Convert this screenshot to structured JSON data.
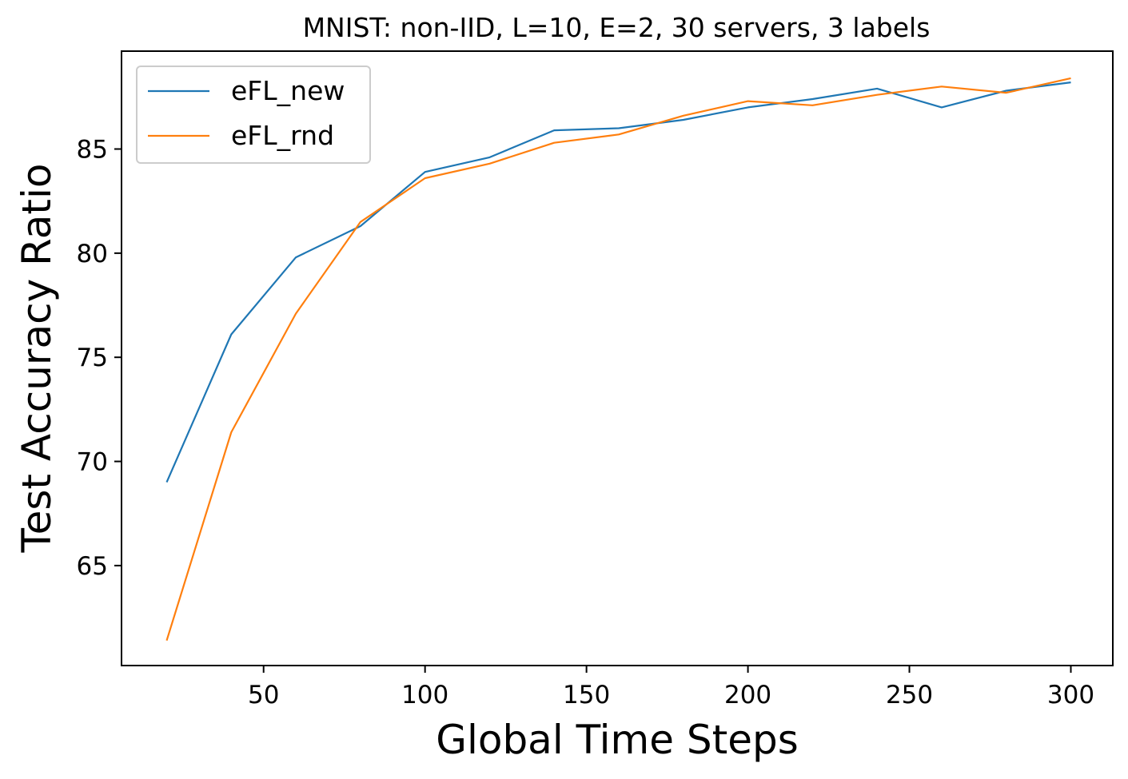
{
  "chart_data": {
    "type": "line",
    "title": "MNIST: non-IID, L=10, E=2, 30 servers, 3 labels",
    "xlabel": "Global Time Steps",
    "ylabel": "Test Accuracy Ratio",
    "x": [
      20,
      40,
      60,
      80,
      100,
      120,
      140,
      160,
      180,
      200,
      220,
      240,
      260,
      280,
      300
    ],
    "xlim": [
      6,
      313
    ],
    "ylim": [
      60.2,
      89.7
    ],
    "xticks": [
      50,
      100,
      150,
      200,
      250,
      300
    ],
    "yticks": [
      65,
      70,
      75,
      80,
      85
    ],
    "grid": false,
    "legend_position": "top-left",
    "series": [
      {
        "name": "eFL_new",
        "color": "#1f77b4",
        "values": [
          69.0,
          76.1,
          79.8,
          81.3,
          83.9,
          84.6,
          85.9,
          86.0,
          86.4,
          87.0,
          87.4,
          87.9,
          87.0,
          87.8,
          88.2
        ]
      },
      {
        "name": "eFL_rnd",
        "color": "#ff7f0e",
        "values": [
          61.4,
          71.4,
          77.1,
          81.5,
          83.6,
          84.3,
          85.3,
          85.7,
          86.6,
          87.3,
          87.1,
          87.6,
          88.0,
          87.7,
          88.4
        ]
      }
    ]
  }
}
